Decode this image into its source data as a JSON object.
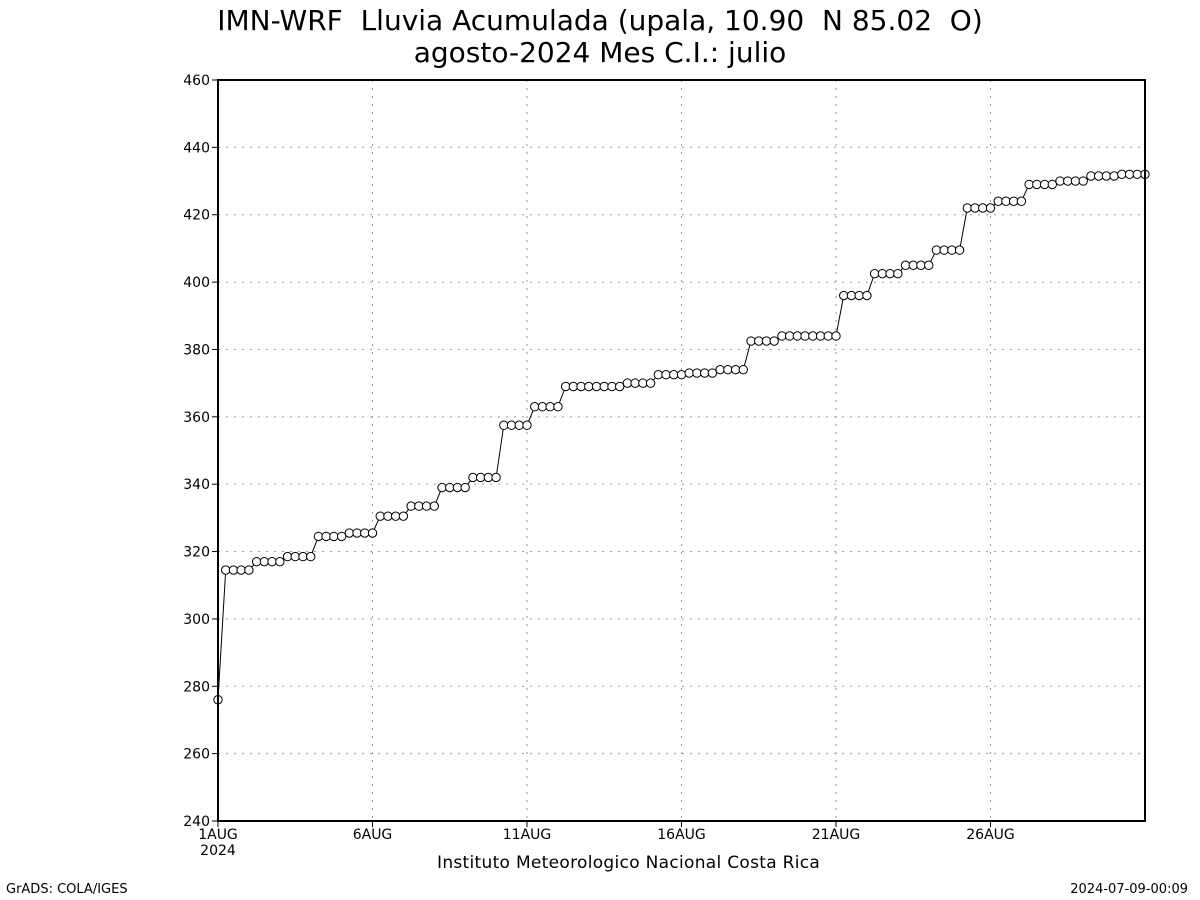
{
  "footer": {
    "left": "GrADS: COLA/IGES",
    "right": "2024-07-09-00:09"
  },
  "chart_data": {
    "type": "line",
    "title": "IMN-WRF  Lluvia Acumulada (upala, 10.90  N 85.02  O)",
    "subtitle": "agosto-2024 Mes C.I.: julio",
    "xlabel": "Instituto Meteorologico Nacional Costa Rica",
    "ylabel": "",
    "ylim": [
      240,
      460
    ],
    "yticks": [
      "240",
      "260",
      "280",
      "300",
      "320",
      "340",
      "360",
      "380",
      "400",
      "420",
      "440",
      "460"
    ],
    "xlim": [
      1,
      31
    ],
    "xticks": [
      {
        "day": 1,
        "label": "1AUG",
        "sublabel": "2024"
      },
      {
        "day": 6,
        "label": "6AUG",
        "sublabel": ""
      },
      {
        "day": 11,
        "label": "11AUG",
        "sublabel": ""
      },
      {
        "day": 16,
        "label": "16AUG",
        "sublabel": ""
      },
      {
        "day": 21,
        "label": "21AUG",
        "sublabel": ""
      },
      {
        "day": 26,
        "label": "26AUG",
        "sublabel": ""
      }
    ],
    "grid": true,
    "x_step_days": 0.25,
    "x_start_day": 1,
    "series": [
      {
        "values": [
          276,
          314.5,
          314.5,
          314.5,
          314.5,
          317,
          317,
          317,
          317,
          318.5,
          318.5,
          318.5,
          318.5,
          324.5,
          324.5,
          324.5,
          324.5,
          325.5,
          325.5,
          325.5,
          325.5,
          330.5,
          330.5,
          330.5,
          330.5,
          333.5,
          333.5,
          333.5,
          333.5,
          339,
          339,
          339,
          339,
          342,
          342,
          342,
          342,
          357.5,
          357.5,
          357.5,
          357.5,
          363,
          363,
          363,
          363,
          369,
          369,
          369,
          369,
          369,
          369,
          369,
          369,
          370,
          370,
          370,
          370,
          372.5,
          372.5,
          372.5,
          372.5,
          373,
          373,
          373,
          373,
          374,
          374,
          374,
          374,
          382.5,
          382.5,
          382.5,
          382.5,
          384,
          384,
          384,
          384,
          384,
          384,
          384,
          384,
          396,
          396,
          396,
          396,
          402.5,
          402.5,
          402.5,
          402.5,
          405,
          405,
          405,
          405,
          409.5,
          409.5,
          409.5,
          409.5,
          422,
          422,
          422,
          422,
          424,
          424,
          424,
          424,
          429,
          429,
          429,
          429,
          430,
          430,
          430,
          430,
          431.5,
          431.5,
          431.5,
          431.5,
          432,
          432,
          432,
          432
        ]
      }
    ]
  }
}
